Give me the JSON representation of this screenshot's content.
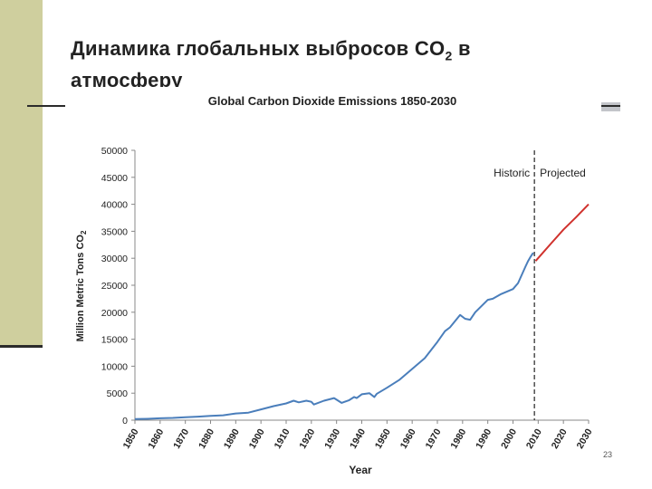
{
  "slide": {
    "title_main": "Динамика глобальных выбросов CO",
    "title_sub": "2",
    "title_tail": " в атмосферу",
    "page_number": "23"
  },
  "colors": {
    "historic": "#4a7ebb",
    "projected": "#d0312d",
    "sidebar": "#cfcf9e"
  },
  "chart_data": {
    "type": "line",
    "title": "Global Carbon Dioxide Emissions 1850-2030",
    "xlabel": "Year",
    "ylabel_main": "Million Metric Tons CO",
    "ylabel_sub": "2",
    "ylim": [
      0,
      50000
    ],
    "xlim": [
      1850,
      2030
    ],
    "yticks": [
      0,
      5000,
      10000,
      15000,
      20000,
      25000,
      30000,
      35000,
      40000,
      45000,
      50000
    ],
    "xticks": [
      1850,
      1860,
      1870,
      1880,
      1890,
      1900,
      1910,
      1920,
      1930,
      1940,
      1950,
      1960,
      1970,
      1980,
      1990,
      2000,
      2010,
      2020,
      2030
    ],
    "divider_x": 2008.5,
    "annotations": {
      "historic": "Historic",
      "projected": "Projected"
    },
    "series": [
      {
        "name": "Historic",
        "x": [
          1850,
          1855,
          1860,
          1865,
          1870,
          1875,
          1880,
          1885,
          1890,
          1895,
          1900,
          1905,
          1910,
          1913,
          1915,
          1918,
          1920,
          1921,
          1925,
          1929,
          1930,
          1932,
          1935,
          1937,
          1938,
          1940,
          1943,
          1945,
          1946,
          1950,
          1955,
          1960,
          1965,
          1970,
          1973,
          1975,
          1979,
          1981,
          1983,
          1985,
          1990,
          1992,
          1995,
          2000,
          2002,
          2005,
          2006,
          2007,
          2008
        ],
        "values": [
          200,
          260,
          350,
          420,
          550,
          650,
          800,
          900,
          1250,
          1400,
          2000,
          2600,
          3100,
          3600,
          3300,
          3600,
          3400,
          2900,
          3600,
          4100,
          3800,
          3200,
          3700,
          4300,
          4100,
          4800,
          5000,
          4300,
          4900,
          6000,
          7500,
          9500,
          11500,
          14500,
          16500,
          17200,
          19500,
          18800,
          18600,
          20000,
          22300,
          22500,
          23300,
          24300,
          25400,
          28500,
          29500,
          30300,
          31000
        ]
      },
      {
        "name": "Projected",
        "x": [
          2009,
          2015,
          2020,
          2025,
          2030
        ],
        "values": [
          29500,
          32700,
          35300,
          37600,
          40000
        ]
      }
    ]
  }
}
